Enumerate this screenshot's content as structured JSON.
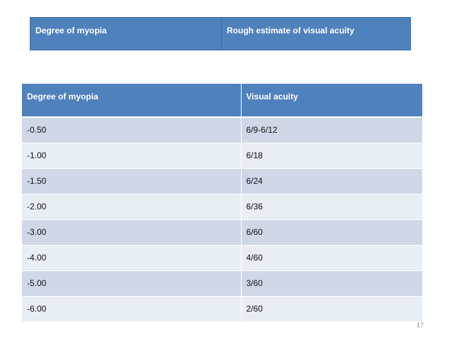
{
  "top_table": {
    "headers": [
      "Degree of myopia",
      "Rough estimate of visual acuity"
    ]
  },
  "main_table": {
    "headers": [
      "Degree of myopia",
      "Visual acuity"
    ],
    "rows": [
      [
        "-0.50",
        "6/9-6/12"
      ],
      [
        "-1.00",
        "6/18"
      ],
      [
        "-1.50",
        "6/24"
      ],
      [
        "-2.00",
        "6/36"
      ],
      [
        "-3.00",
        "6/60"
      ],
      [
        "-4.00",
        "4/60"
      ],
      [
        "-5.00",
        "3/60"
      ],
      [
        "-6.00",
        "2/60"
      ]
    ]
  },
  "page_number": "17",
  "colors": {
    "header_fill": "#4f81bd",
    "row_dark": "#d0d8e8",
    "row_light": "#e9edf4"
  }
}
